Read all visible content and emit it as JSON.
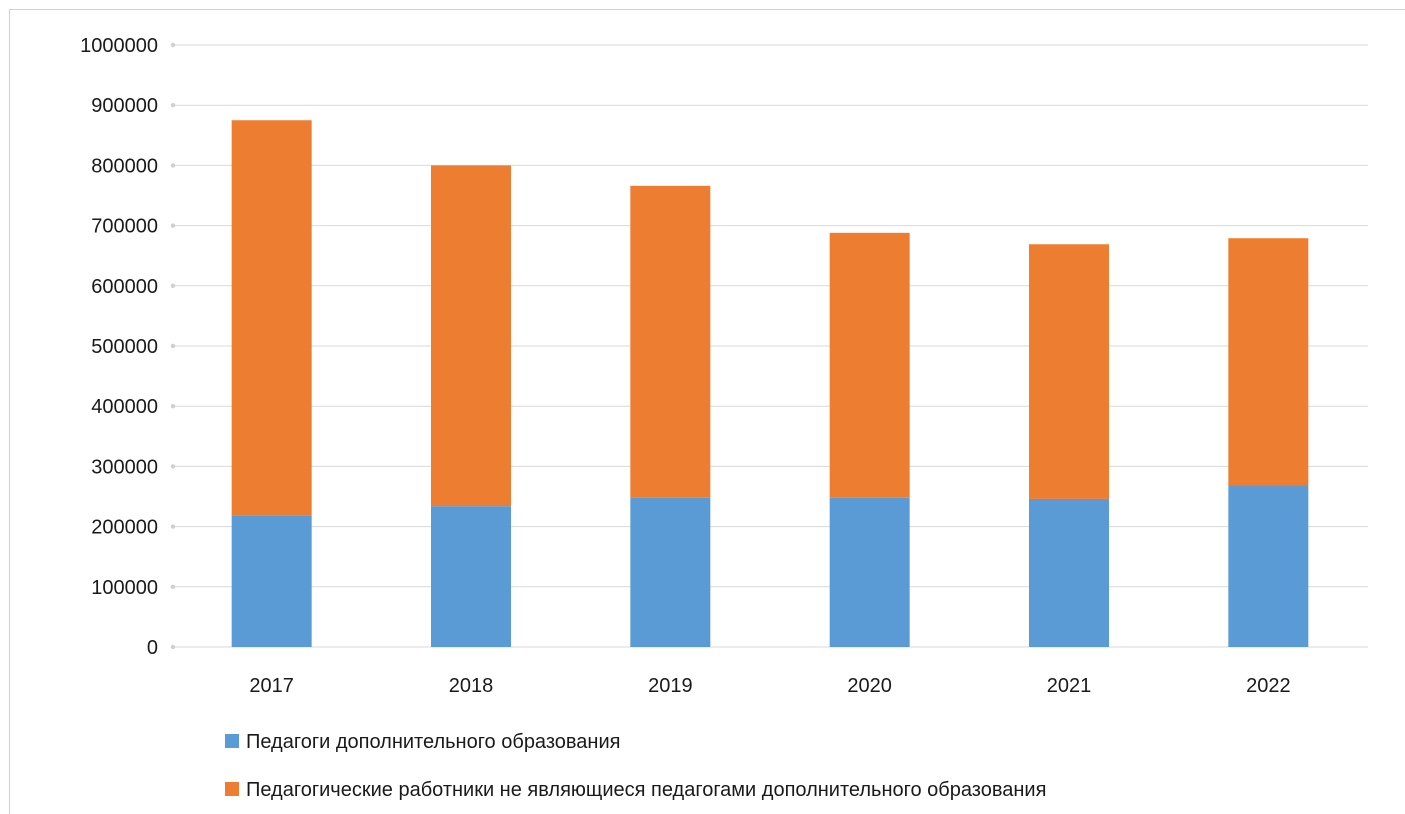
{
  "chart_data": {
    "type": "bar",
    "stacked": true,
    "categories": [
      "2017",
      "2018",
      "2019",
      "2020",
      "2021",
      "2022"
    ],
    "series": [
      {
        "name": "Педагоги дополнительного образования",
        "color": "#5b9bd5",
        "values": [
          219000,
          234000,
          248000,
          248000,
          246000,
          269000
        ]
      },
      {
        "name": "Педагогические работники не являющиеся педагогами дополнительного образования",
        "color": "#ed7d31",
        "values": [
          656000,
          566000,
          518000,
          440000,
          423000,
          410000
        ]
      }
    ],
    "y_ticks": [
      "0",
      "100000",
      "200000",
      "300000",
      "400000",
      "500000",
      "600000",
      "700000",
      "800000",
      "900000",
      "1000000"
    ],
    "ylim": [
      0,
      1000000
    ],
    "grid": true,
    "legend_position": "bottom"
  }
}
